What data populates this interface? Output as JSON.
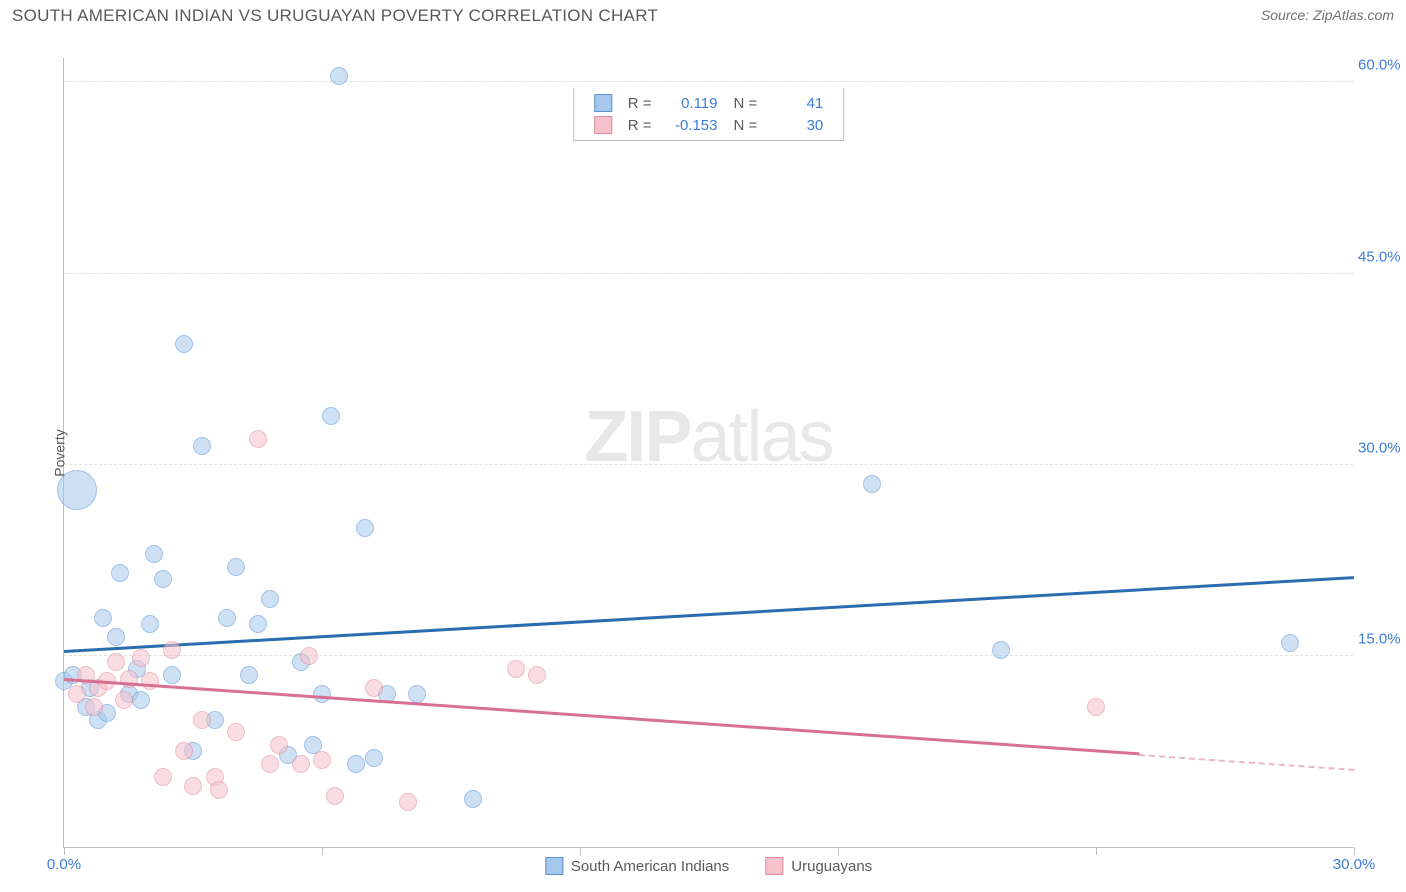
{
  "header": {
    "title": "SOUTH AMERICAN INDIAN VS URUGUAYAN POVERTY CORRELATION CHART",
    "source_prefix": "Source: ",
    "source_name": "ZipAtlas.com"
  },
  "watermark": {
    "bold": "ZIP",
    "rest": "atlas"
  },
  "chart": {
    "type": "scatter",
    "ylabel": "Poverty",
    "xlim": [
      0,
      30
    ],
    "ylim": [
      0,
      62
    ],
    "xtick_positions": [
      0,
      6,
      12,
      18,
      24,
      30
    ],
    "xtick_labels": {
      "0": "0.0%",
      "30": "30.0%"
    },
    "ytick_positions": [
      15,
      30,
      45,
      60
    ],
    "ytick_labels": {
      "15": "15.0%",
      "30": "30.0%",
      "45": "45.0%",
      "60": "60.0%"
    },
    "background_color": "#ffffff",
    "grid_color": "#e0e0e0",
    "axis_color": "#bdbdbd",
    "label_color": "#3b7dd8",
    "point_radius": 9,
    "point_opacity": 0.55,
    "series": [
      {
        "name": "South American Indians",
        "color_fill": "#a6c8ec",
        "color_stroke": "#5b93d0",
        "R": "0.119",
        "N": "41",
        "trend": {
          "x1": 0,
          "y1": 15.2,
          "x2": 30,
          "y2": 21.0,
          "color": "#2b6cb0",
          "solid_until_x": 30
        },
        "points": [
          [
            0.0,
            13.0
          ],
          [
            0.2,
            13.5
          ],
          [
            0.3,
            28.0,
            20
          ],
          [
            0.5,
            11.0
          ],
          [
            0.6,
            12.5
          ],
          [
            0.8,
            10.0
          ],
          [
            0.9,
            18.0
          ],
          [
            1.0,
            10.5
          ],
          [
            1.2,
            16.5
          ],
          [
            1.3,
            21.5
          ],
          [
            1.5,
            12.0
          ],
          [
            1.7,
            14.0
          ],
          [
            1.8,
            11.5
          ],
          [
            2.0,
            17.5
          ],
          [
            2.1,
            23.0
          ],
          [
            2.3,
            21.0
          ],
          [
            2.5,
            13.5
          ],
          [
            2.8,
            39.5
          ],
          [
            3.0,
            7.5
          ],
          [
            3.2,
            31.5
          ],
          [
            3.5,
            10.0
          ],
          [
            3.8,
            18.0
          ],
          [
            4.0,
            22.0
          ],
          [
            4.3,
            13.5
          ],
          [
            4.5,
            17.5
          ],
          [
            4.8,
            19.5
          ],
          [
            5.2,
            7.2
          ],
          [
            5.5,
            14.5
          ],
          [
            5.8,
            8.0
          ],
          [
            6.0,
            12.0
          ],
          [
            6.2,
            33.8
          ],
          [
            6.4,
            60.5
          ],
          [
            6.8,
            6.5
          ],
          [
            7.0,
            25.0
          ],
          [
            7.2,
            7.0
          ],
          [
            7.5,
            12.0
          ],
          [
            8.2,
            12.0
          ],
          [
            9.5,
            3.8
          ],
          [
            18.8,
            28.5
          ],
          [
            21.8,
            15.5
          ],
          [
            28.5,
            16.0
          ]
        ]
      },
      {
        "name": "Uruguayans",
        "color_fill": "#f5c2cb",
        "color_stroke": "#e08b9b",
        "R": "-0.153",
        "N": "30",
        "trend": {
          "x1": 0,
          "y1": 13.0,
          "x2": 30,
          "y2": 6.0,
          "color": "#d87093",
          "solid_until_x": 25
        },
        "points": [
          [
            0.3,
            12.0
          ],
          [
            0.5,
            13.5
          ],
          [
            0.7,
            11.0
          ],
          [
            0.8,
            12.5
          ],
          [
            1.0,
            13.0
          ],
          [
            1.2,
            14.5
          ],
          [
            1.4,
            11.5
          ],
          [
            1.5,
            13.2
          ],
          [
            1.8,
            14.8
          ],
          [
            2.0,
            13.0
          ],
          [
            2.3,
            5.5
          ],
          [
            2.5,
            15.5
          ],
          [
            2.8,
            7.5
          ],
          [
            3.0,
            4.8
          ],
          [
            3.2,
            10.0
          ],
          [
            3.5,
            5.5
          ],
          [
            3.6,
            4.5
          ],
          [
            4.0,
            9.0
          ],
          [
            4.5,
            32.0
          ],
          [
            4.8,
            6.5
          ],
          [
            5.0,
            8.0
          ],
          [
            5.5,
            6.5
          ],
          [
            5.7,
            15.0
          ],
          [
            6.0,
            6.8
          ],
          [
            6.3,
            4.0
          ],
          [
            7.2,
            12.5
          ],
          [
            8.0,
            3.5
          ],
          [
            10.5,
            14.0
          ],
          [
            11.0,
            13.5
          ],
          [
            24.0,
            11.0
          ]
        ]
      }
    ]
  },
  "legend_top": {
    "r_label": "R =",
    "n_label": "N ="
  }
}
